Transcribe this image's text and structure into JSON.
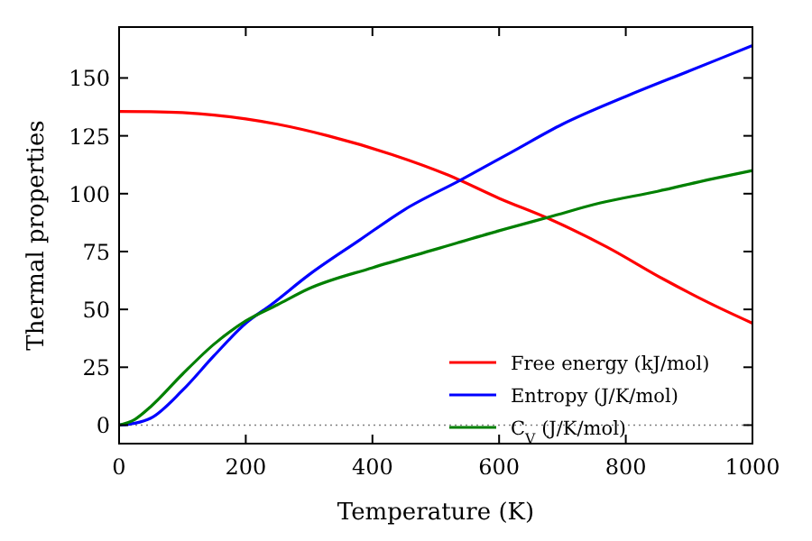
{
  "chart_data": {
    "type": "line",
    "xlabel": "Temperature (K)",
    "ylabel": "Thermal properties",
    "xlim": [
      0,
      1000
    ],
    "ylim": [
      -8,
      172
    ],
    "xticks": [
      0,
      200,
      400,
      600,
      800,
      1000
    ],
    "yticks": [
      0,
      25,
      50,
      75,
      100,
      125,
      150
    ],
    "legend": "bottom right",
    "grid": false,
    "line_style": "solid",
    "ref_lines": [
      {
        "axis": "y",
        "value": 0,
        "color": "#808080",
        "line_style": "dotted"
      }
    ],
    "series": [
      {
        "name": "Free energy (kJ/mol)",
        "color": "#ff0000",
        "x": [
          0,
          50,
          100,
          150,
          200,
          250,
          330,
          430,
          520,
          600,
          680,
          770,
          860,
          930,
          1000
        ],
        "values": [
          135.5,
          135.4,
          135,
          134,
          132.3,
          130,
          125,
          117,
          108,
          98,
          89,
          77,
          63,
          53,
          44
        ]
      },
      {
        "name": "Entropy (J/K/mol)",
        "color": "#0000ff",
        "x": [
          0,
          25,
          50,
          100,
          150,
          200,
          240,
          300,
          380,
          450,
          540,
          620,
          700,
          800,
          900,
          1000
        ],
        "values": [
          0,
          0.8,
          3,
          15,
          30,
          44,
          52,
          65,
          80,
          93,
          106,
          118,
          130,
          142,
          153,
          164
        ]
      },
      {
        "name": "C$_{V}$ (J/K/mol)",
        "color": "#008000",
        "x": [
          0,
          25,
          50,
          100,
          150,
          200,
          250,
          300,
          400,
          500,
          600,
          680,
          760,
          850,
          930,
          1000
        ],
        "values": [
          0,
          2.5,
          8,
          22,
          35,
          45,
          52,
          59,
          68,
          76,
          84,
          90,
          96,
          101,
          106,
          110
        ]
      }
    ]
  }
}
